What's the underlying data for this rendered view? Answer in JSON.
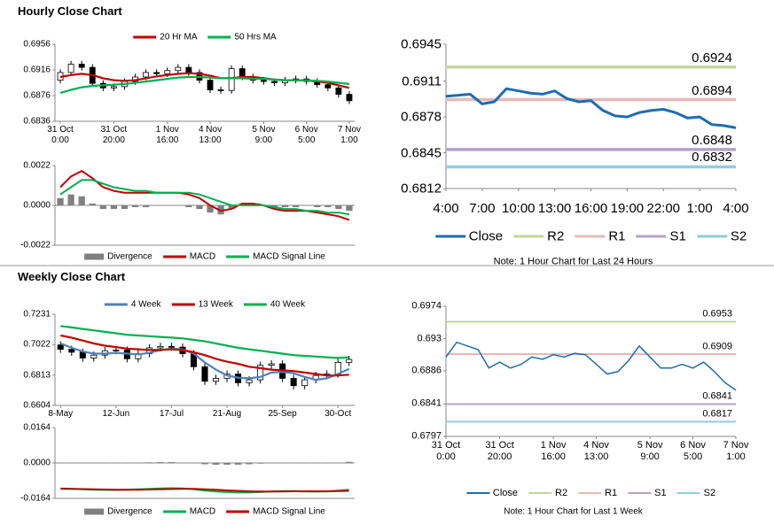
{
  "headings": [
    "Hourly Close Chart",
    "Weekly Close Chart"
  ],
  "chart_data": [
    {
      "type": "candlestick",
      "categories": [
        "31 Oct\n0:00",
        null,
        null,
        null,
        null,
        "31 Oct\n20:00",
        null,
        null,
        null,
        null,
        "1 Nov\n16:00",
        null,
        null,
        null,
        "4 Nov\n13:00",
        null,
        null,
        null,
        null,
        "5 Nov\n9:00",
        null,
        null,
        null,
        "6 Nov\n5:00",
        null,
        null,
        null,
        "7 Nov\n1:00"
      ],
      "open": [
        0.69,
        0.6912,
        0.6925,
        0.692,
        0.6895,
        0.6888,
        0.689,
        0.6898,
        0.6905,
        0.6912,
        0.691,
        0.6915,
        0.692,
        0.6912,
        0.69,
        0.6885,
        0.6884,
        0.6918,
        0.6905,
        0.69,
        0.6898,
        0.6896,
        0.69,
        0.6902,
        0.6898,
        0.6893,
        0.6888,
        0.6878
      ],
      "high": [
        0.6917,
        0.693,
        0.693,
        0.6925,
        0.69,
        0.6895,
        0.6903,
        0.691,
        0.6917,
        0.6917,
        0.692,
        0.6925,
        0.6925,
        0.6917,
        0.6905,
        0.689,
        0.6923,
        0.6923,
        0.691,
        0.6905,
        0.6903,
        0.6905,
        0.6907,
        0.6907,
        0.6903,
        0.6898,
        0.6893,
        0.6883
      ],
      "low": [
        0.6895,
        0.6907,
        0.6915,
        0.689,
        0.6883,
        0.6883,
        0.6885,
        0.6893,
        0.69,
        0.6905,
        0.6905,
        0.691,
        0.6907,
        0.6895,
        0.688,
        0.6879,
        0.6879,
        0.69,
        0.6895,
        0.6893,
        0.6891,
        0.6891,
        0.6895,
        0.6893,
        0.6888,
        0.6883,
        0.6873,
        0.6863
      ],
      "close": [
        0.6912,
        0.6925,
        0.692,
        0.6895,
        0.6888,
        0.689,
        0.6898,
        0.6905,
        0.6912,
        0.691,
        0.6915,
        0.692,
        0.6912,
        0.69,
        0.6885,
        0.6884,
        0.6918,
        0.6905,
        0.69,
        0.6898,
        0.6896,
        0.69,
        0.6902,
        0.6898,
        0.6893,
        0.6888,
        0.6878,
        0.6868
      ],
      "series": [
        {
          "name": "20 Hr MA",
          "color": "#c00000",
          "values": [
            0.6905,
            0.6908,
            0.691,
            0.6908,
            0.6903,
            0.69,
            0.6899,
            0.69,
            0.6903,
            0.6906,
            0.6908,
            0.691,
            0.6911,
            0.691,
            0.6907,
            0.6903,
            0.6903,
            0.6905,
            0.6905,
            0.6903,
            0.6901,
            0.69,
            0.69,
            0.69,
            0.6898,
            0.6896,
            0.6892,
            0.6888
          ]
        },
        {
          "name": "50 Hrs MA",
          "color": "#00b050",
          "values": [
            0.688,
            0.6885,
            0.6889,
            0.6891,
            0.6892,
            0.6893,
            0.6894,
            0.6896,
            0.6898,
            0.69,
            0.6902,
            0.6904,
            0.6905,
            0.6905,
            0.6904,
            0.6903,
            0.6903,
            0.6903,
            0.6902,
            0.6902,
            0.6901,
            0.69,
            0.69,
            0.69,
            0.6899,
            0.6898,
            0.6896,
            0.6894
          ]
        }
      ],
      "ylim": [
        0.6836,
        0.6956
      ],
      "yticks": [
        0.6956,
        0.6916,
        0.6876,
        0.6836
      ],
      "legend": "top"
    },
    {
      "type": "macd",
      "series": [
        {
          "name": "Divergence",
          "style": "bar",
          "color": "#808080",
          "values": [
            0.0004,
            0.0006,
            0.0005,
            0.0001,
            -0.0002,
            -0.0002,
            -0.0002,
            -0.0001,
            -0.0001,
            0,
            0,
            0,
            -0.0001,
            -0.0002,
            -0.0004,
            -0.0005,
            -0.0002,
            0.0001,
            0.0001,
            0,
            -0.0001,
            -0.0001,
            -0.0001,
            0,
            -0.0001,
            -0.0001,
            -0.0002,
            -0.0003
          ]
        },
        {
          "name": "MACD",
          "style": "line",
          "color": "#c00000",
          "values": [
            0.001,
            0.0016,
            0.0019,
            0.0015,
            0.001,
            0.0008,
            0.0007,
            0.0007,
            0.0007,
            0.0007,
            0.0007,
            0.0007,
            0.0006,
            0.0004,
            0.0,
            -0.0003,
            -0.0002,
            0.0001,
            0.0001,
            0.0,
            -0.0002,
            -0.0003,
            -0.0003,
            -0.0003,
            -0.0004,
            -0.0005,
            -0.0006,
            -0.0008
          ]
        },
        {
          "name": "MACD Signal Line",
          "style": "line",
          "color": "#00b050",
          "values": [
            0.0006,
            0.001,
            0.0014,
            0.0014,
            0.0012,
            0.001,
            0.0009,
            0.0008,
            0.0008,
            0.0007,
            0.0007,
            0.0007,
            0.0007,
            0.0006,
            0.0004,
            0.0002,
            0.0,
            0.0,
            0.0,
            0.0,
            -0.0001,
            -0.0002,
            -0.0002,
            -0.0003,
            -0.0003,
            -0.0004,
            -0.0004,
            -0.0005
          ]
        }
      ],
      "ylim": [
        -0.0022,
        0.0022
      ],
      "yticks": [
        0.0022,
        {
          "value": 0,
          "label": "0.0000"
        },
        -0.0022
      ],
      "legend": "bottom"
    },
    {
      "type": "line",
      "categories": [
        "4:00",
        null,
        null,
        "7:00",
        null,
        null,
        "10:00",
        null,
        null,
        "13:00",
        null,
        null,
        "16:00",
        null,
        null,
        "19:00",
        null,
        null,
        "22:00",
        null,
        null,
        "1:00",
        null,
        null,
        "4:00"
      ],
      "series": [
        {
          "name": "Close",
          "color": "#1f6cb0",
          "values": [
            0.6897,
            0.6898,
            0.6899,
            0.689,
            0.6892,
            0.6904,
            0.6902,
            0.69,
            0.6899,
            0.6902,
            0.6895,
            0.6892,
            0.6893,
            0.6884,
            0.6879,
            0.6878,
            0.6882,
            0.6884,
            0.6885,
            0.6882,
            0.6877,
            0.6878,
            0.6871,
            0.687,
            0.6868
          ]
        }
      ],
      "levels": [
        {
          "name": "R2",
          "value": 0.6924,
          "color": "#c3d69b"
        },
        {
          "name": "R1",
          "value": 0.6894,
          "color": "#e6b9b8"
        },
        {
          "name": "S1",
          "value": 0.6848,
          "color": "#b3a2c7"
        },
        {
          "name": "S2",
          "value": 0.6832,
          "color": "#93cddd"
        }
      ],
      "ylim": [
        0.6812,
        0.6945
      ],
      "yticks": [
        0.6945,
        0.6911,
        0.6878,
        0.6845,
        0.6812
      ],
      "legend": "bottom",
      "note": "Note: 1 Hour Chart for Last 24 Hours"
    },
    {
      "type": "candlestick",
      "categories": [
        "8-May",
        null,
        null,
        null,
        null,
        "12-Jun",
        null,
        null,
        null,
        null,
        "17-Jul",
        null,
        null,
        null,
        null,
        "21-Aug",
        null,
        null,
        null,
        null,
        "25-Sep",
        null,
        null,
        null,
        null,
        "30-Oct",
        null
      ],
      "open": [
        0.702,
        0.699,
        0.697,
        0.693,
        0.695,
        0.698,
        0.6985,
        0.6925,
        0.696,
        0.7,
        0.701,
        0.7005,
        0.696,
        0.687,
        0.677,
        0.679,
        0.682,
        0.676,
        0.678,
        0.688,
        0.689,
        0.679,
        0.674,
        0.678,
        0.681,
        0.682,
        0.69
      ],
      "high": [
        0.7045,
        0.7015,
        0.6995,
        0.6975,
        0.7005,
        0.701,
        0.701,
        0.6985,
        0.7025,
        0.7035,
        0.7035,
        0.703,
        0.6985,
        0.6895,
        0.6815,
        0.6845,
        0.6845,
        0.6805,
        0.6905,
        0.6915,
        0.6915,
        0.6815,
        0.6805,
        0.6835,
        0.6845,
        0.6925,
        0.6945
      ],
      "low": [
        0.6965,
        0.6945,
        0.6905,
        0.6905,
        0.6925,
        0.6955,
        0.69,
        0.69,
        0.6935,
        0.6975,
        0.698,
        0.6935,
        0.6845,
        0.6745,
        0.6745,
        0.6765,
        0.6735,
        0.6735,
        0.6755,
        0.6855,
        0.6765,
        0.6715,
        0.6715,
        0.6755,
        0.6785,
        0.6795,
        0.6875
      ],
      "close": [
        0.699,
        0.697,
        0.693,
        0.695,
        0.698,
        0.6985,
        0.6925,
        0.696,
        0.7,
        0.701,
        0.7005,
        0.696,
        0.687,
        0.677,
        0.679,
        0.682,
        0.676,
        0.678,
        0.688,
        0.689,
        0.679,
        0.674,
        0.678,
        0.681,
        0.682,
        0.69,
        0.692
      ],
      "series": [
        {
          "name": "4 Week",
          "color": "#4f81bd",
          "values": [
            0.703,
            0.7,
            0.6975,
            0.696,
            0.696,
            0.6965,
            0.696,
            0.6955,
            0.6965,
            0.6985,
            0.6995,
            0.699,
            0.696,
            0.69,
            0.685,
            0.681,
            0.6795,
            0.679,
            0.68,
            0.683,
            0.6835,
            0.6825,
            0.68,
            0.678,
            0.679,
            0.682,
            0.6855
          ]
        },
        {
          "name": "13 Week",
          "color": "#c00000",
          "values": [
            0.7085,
            0.707,
            0.705,
            0.703,
            0.7015,
            0.7005,
            0.6995,
            0.699,
            0.6985,
            0.6985,
            0.699,
            0.6985,
            0.697,
            0.695,
            0.6925,
            0.6905,
            0.689,
            0.687,
            0.686,
            0.685,
            0.6845,
            0.684,
            0.683,
            0.682,
            0.681,
            0.681,
            0.6815
          ]
        },
        {
          "name": "40 Week",
          "color": "#00b050",
          "values": [
            0.715,
            0.714,
            0.713,
            0.712,
            0.711,
            0.71,
            0.709,
            0.7085,
            0.708,
            0.7075,
            0.707,
            0.7065,
            0.7055,
            0.7045,
            0.703,
            0.7015,
            0.7,
            0.699,
            0.698,
            0.697,
            0.696,
            0.695,
            0.6945,
            0.694,
            0.6935,
            0.693,
            0.6935
          ]
        }
      ],
      "ylim": [
        0.6604,
        0.7231
      ],
      "yticks": [
        0.7231,
        0.7022,
        0.6813,
        0.6604
      ],
      "legend": "top"
    },
    {
      "type": "macd",
      "series": [
        {
          "name": "Divergence",
          "style": "bar",
          "color": "#808080",
          "values": [
            0.0002,
            0,
            -0.0001,
            -0.0002,
            -0.0002,
            -0.0001,
            0,
            0.0002,
            0.0003,
            0.0004,
            0.0004,
            0.0002,
            -0.0002,
            -0.0006,
            -0.0008,
            -0.0008,
            -0.0008,
            -0.0006,
            -0.0003,
            0,
            0.0002,
            0.0001,
            -0.0001,
            -0.0002,
            -0.0001,
            0.0002,
            0.0005
          ]
        },
        {
          "name": "MACD",
          "style": "line",
          "color": "#00b050",
          "values": [
            -0.0118,
            -0.012,
            -0.0122,
            -0.0124,
            -0.0125,
            -0.0125,
            -0.0124,
            -0.0122,
            -0.012,
            -0.0118,
            -0.0117,
            -0.0118,
            -0.0122,
            -0.0128,
            -0.0132,
            -0.0135,
            -0.0137,
            -0.0137,
            -0.0135,
            -0.0132,
            -0.013,
            -0.013,
            -0.0132,
            -0.0133,
            -0.0132,
            -0.0128,
            -0.0124
          ]
        },
        {
          "name": "MACD Signal Line",
          "style": "line",
          "color": "#c00000",
          "values": [
            -0.012,
            -0.012,
            -0.0121,
            -0.0122,
            -0.0123,
            -0.0124,
            -0.0124,
            -0.0124,
            -0.0123,
            -0.0122,
            -0.0121,
            -0.012,
            -0.012,
            -0.0122,
            -0.0124,
            -0.0127,
            -0.0129,
            -0.0131,
            -0.0132,
            -0.0132,
            -0.0132,
            -0.0131,
            -0.0131,
            -0.0131,
            -0.0131,
            -0.013,
            -0.0129
          ]
        }
      ],
      "ylim": [
        -0.0164,
        0.0164
      ],
      "yticks": [
        0.0164,
        {
          "value": 0,
          "label": "0.0000"
        },
        -0.0164
      ],
      "legend": "bottom"
    },
    {
      "type": "line",
      "categories": [
        "31 Oct\n0:00",
        null,
        null,
        null,
        null,
        "31 Oct\n20:00",
        null,
        null,
        null,
        null,
        "1 Nov\n16:00",
        null,
        null,
        null,
        "4 Nov\n13:00",
        null,
        null,
        null,
        null,
        "5 Nov\n9:00",
        null,
        null,
        null,
        "6 Nov\n5:00",
        null,
        null,
        null,
        "7 Nov\n1:00"
      ],
      "series": [
        {
          "name": "Close",
          "color": "#1f6cb0",
          "values": [
            0.6905,
            0.6925,
            0.692,
            0.6915,
            0.689,
            0.6898,
            0.689,
            0.6895,
            0.6905,
            0.6902,
            0.6908,
            0.6905,
            0.691,
            0.6908,
            0.6895,
            0.6882,
            0.6885,
            0.69,
            0.692,
            0.6905,
            0.689,
            0.689,
            0.6895,
            0.689,
            0.6898,
            0.6885,
            0.687,
            0.686
          ]
        }
      ],
      "levels": [
        {
          "name": "R2",
          "value": 0.6953,
          "color": "#c3d69b"
        },
        {
          "name": "R1",
          "value": 0.6909,
          "color": "#e6b9b8"
        },
        {
          "name": "S1",
          "value": 0.6841,
          "color": "#b3a2c7"
        },
        {
          "name": "S2",
          "value": 0.6817,
          "color": "#93cddd"
        }
      ],
      "ylim": [
        0.6797,
        0.6974
      ],
      "yticks": [
        0.6974,
        0.693,
        0.6886,
        0.6841,
        0.6797
      ],
      "legend": "bottom",
      "note": "Note: 1 Hour Chart for Last 1 Week"
    }
  ]
}
